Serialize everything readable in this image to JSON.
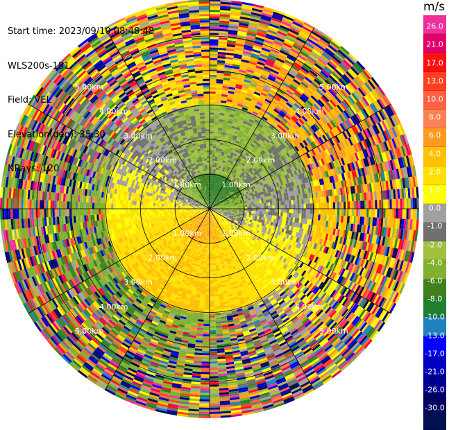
{
  "header": {
    "start_time": "Start time: 2023/09/10 08:48:48",
    "instrument": "WLS200s-181",
    "field": "Field: VEL",
    "elevation": "Elevation(deg): 35.30",
    "nrays": "NRays: 120"
  },
  "colorbar": {
    "unit": "m/s",
    "ticks": [
      "26.0",
      "21.0",
      "17.0",
      "13.0",
      "10.0",
      "8.0",
      "6.0",
      "4.0",
      "2.0",
      "1.0",
      "0.0",
      "-1.0",
      "-2.0",
      "-4.0",
      "-6.0",
      "-8.0",
      "-10.0",
      "-13.0",
      "-17.0",
      "-21.0",
      "-26.0",
      "-30.0"
    ],
    "colors": [
      "#f0309a",
      "#e0006a",
      "#ff1010",
      "#ff4020",
      "#ff6040",
      "#ff8050",
      "#ff9a20",
      "#ffc000",
      "#ffe000",
      "#ffff00",
      "#a0a0a0",
      "#707070",
      "#a0c040",
      "#80b030",
      "#408020",
      "#208030",
      "#2080c0",
      "#0000ff",
      "#0000c0",
      "#000090",
      "#000060",
      "#001050"
    ]
  },
  "chart_data": {
    "type": "ppi",
    "field": "VEL",
    "unit": "m/s",
    "n_rays": 120,
    "elevation_deg": 35.3,
    "range_rings_km": [
      1.0,
      2.0,
      3.0,
      4.0,
      5.0
    ],
    "range_label": "km",
    "max_range_km": 6.0,
    "azimuth_lines_deg": [
      0,
      30,
      60,
      90,
      120,
      150,
      180,
      210,
      240,
      270,
      300,
      330
    ],
    "velocity_levels": [
      26.0,
      21.0,
      17.0,
      13.0,
      10.0,
      8.0,
      6.0,
      4.0,
      2.0,
      1.0,
      0.0,
      -1.0,
      -2.0,
      -4.0,
      -6.0,
      -8.0,
      -10.0,
      -13.0,
      -17.0,
      -21.0,
      -26.0,
      -30.0
    ],
    "velocity_colors": [
      "#f0309a",
      "#e0006a",
      "#ff1010",
      "#ff4020",
      "#ff6040",
      "#ff8050",
      "#ff9a20",
      "#ffc000",
      "#ffe000",
      "#ffff00",
      "#a0a0a0",
      "#707070",
      "#a0c040",
      "#80b030",
      "#408020",
      "#208030",
      "#2080c0",
      "#0000ff",
      "#0000c0",
      "#000090",
      "#000060",
      "#001050"
    ],
    "pattern": {
      "description_key": "dipole",
      "inner_positive_bearing_deg": 200,
      "inner_negative_bearing_deg": 80,
      "noise_start_km": 3.0
    }
  }
}
